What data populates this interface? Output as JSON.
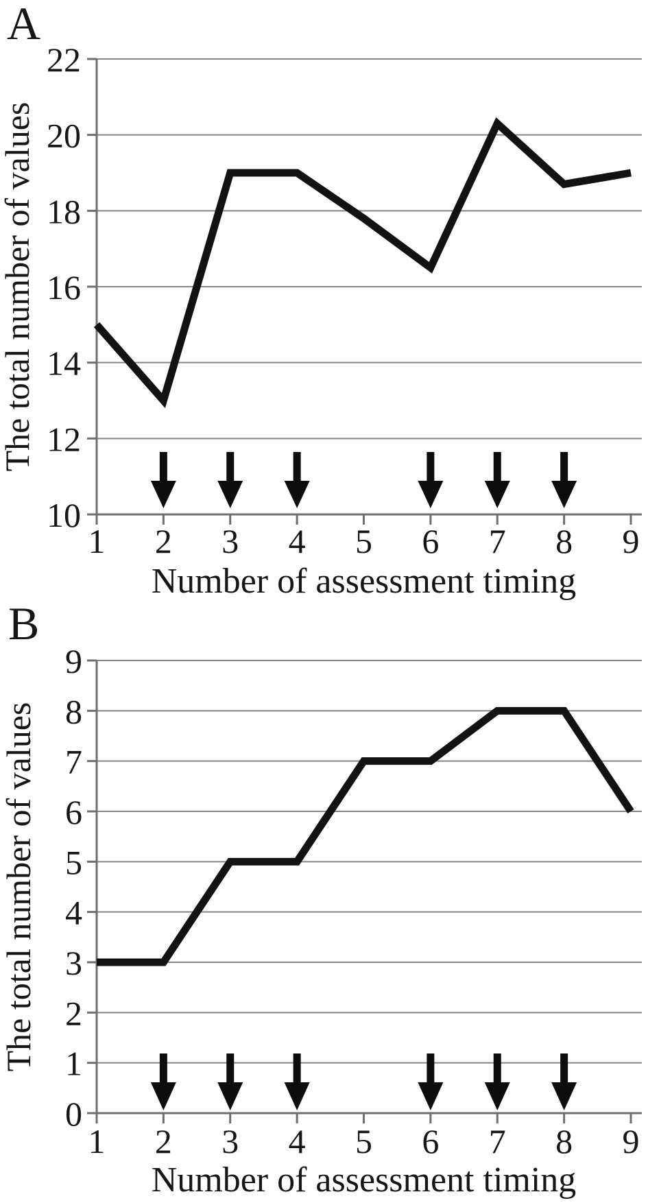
{
  "figure": {
    "background": "#ffffff",
    "text_color": "#161616",
    "grid_color": "#858585",
    "axis_color": "#6e6e6e",
    "line_color": "#121212",
    "arrow_color": "#0d0d0d"
  },
  "chart_data": [
    {
      "type": "line",
      "panel_label": "A",
      "title": "",
      "xlabel": "Number of assessment timing",
      "ylabel": "The total number of values",
      "x": [
        1,
        2,
        3,
        4,
        5,
        6,
        7,
        8,
        9
      ],
      "values": [
        15,
        13,
        19,
        19,
        17.8,
        16.5,
        20.3,
        18.7,
        19
      ],
      "ylim": [
        10,
        22
      ],
      "yticks": [
        10,
        12,
        14,
        16,
        18,
        20,
        22
      ],
      "xticks": [
        1,
        2,
        3,
        4,
        5,
        6,
        7,
        8,
        9
      ],
      "grid": "horizontal",
      "legend": "none",
      "annotations": {
        "down_arrows_at_x": [
          2,
          3,
          4,
          6,
          7,
          8
        ],
        "arrow_top_value": 11.65,
        "arrow_tip_value": 10.2
      }
    },
    {
      "type": "line",
      "panel_label": "B",
      "title": "",
      "xlabel": "Number of assessment timing",
      "ylabel": "The total number of values",
      "x": [
        1,
        2,
        3,
        4,
        5,
        6,
        7,
        8,
        9
      ],
      "values": [
        3,
        3,
        5,
        5,
        7,
        7,
        8,
        8,
        6
      ],
      "ylim": [
        0,
        9
      ],
      "yticks": [
        0,
        1,
        2,
        3,
        4,
        5,
        6,
        7,
        8,
        9
      ],
      "xticks": [
        1,
        2,
        3,
        4,
        5,
        6,
        7,
        8,
        9
      ],
      "grid": "horizontal",
      "legend": "none",
      "annotations": {
        "down_arrows_at_x": [
          2,
          3,
          4,
          6,
          7,
          8
        ],
        "arrow_top_value": 1.18,
        "arrow_tip_value": 0.06
      }
    }
  ]
}
